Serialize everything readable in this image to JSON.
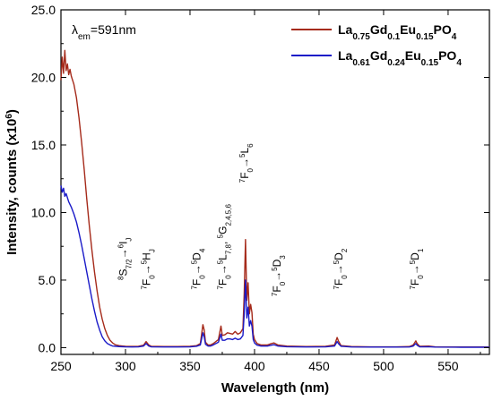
{
  "chart_data": {
    "type": "line",
    "xlabel": "Wavelength (nm)",
    "ylabel_parts": [
      "Intensity, counts (x10",
      "6",
      ")"
    ],
    "xlim": [
      250,
      582
    ],
    "ylim": [
      -0.5,
      25.0
    ],
    "xticks": [
      250,
      300,
      350,
      400,
      450,
      500,
      550
    ],
    "yticks": [
      0.0,
      5.0,
      10.0,
      15.0,
      20.0,
      25.0
    ],
    "ytick_labels": [
      "0.0",
      "5.0",
      "10.0",
      "15.0",
      "20.0",
      "25.0"
    ],
    "grid": false,
    "legend_position": "top-right",
    "excitation_label": {
      "symbol": "λ",
      "sub": "em",
      "text": "=591nm"
    },
    "series": [
      {
        "legend_parts": [
          [
            "La",
            "0.75"
          ],
          [
            "Gd",
            "0.1"
          ],
          [
            "Eu",
            "0.15"
          ],
          [
            "PO",
            "4"
          ]
        ],
        "color": "#a52a1a",
        "points": [
          [
            250,
            19.8
          ],
          [
            251,
            21.5
          ],
          [
            252,
            20.3
          ],
          [
            253,
            22.0
          ],
          [
            254,
            20.5
          ],
          [
            255,
            21.0
          ],
          [
            256,
            20.2
          ],
          [
            257,
            20.6
          ],
          [
            258,
            20.1
          ],
          [
            260,
            19.5
          ],
          [
            262,
            18.5
          ],
          [
            264,
            17.0
          ],
          [
            266,
            15.2
          ],
          [
            268,
            13.2
          ],
          [
            270,
            11.0
          ],
          [
            272,
            9.0
          ],
          [
            274,
            7.2
          ],
          [
            276,
            5.6
          ],
          [
            278,
            4.2
          ],
          [
            280,
            3.0
          ],
          [
            282,
            2.1
          ],
          [
            284,
            1.4
          ],
          [
            286,
            0.9
          ],
          [
            288,
            0.55
          ],
          [
            290,
            0.35
          ],
          [
            292,
            0.22
          ],
          [
            295,
            0.15
          ],
          [
            298,
            0.12
          ],
          [
            300,
            0.1
          ],
          [
            305,
            0.09
          ],
          [
            310,
            0.1
          ],
          [
            314,
            0.18
          ],
          [
            316,
            0.45
          ],
          [
            318,
            0.2
          ],
          [
            320,
            0.1
          ],
          [
            330,
            0.08
          ],
          [
            340,
            0.08
          ],
          [
            350,
            0.1
          ],
          [
            355,
            0.15
          ],
          [
            358,
            0.3
          ],
          [
            360,
            1.7
          ],
          [
            361,
            1.3
          ],
          [
            362,
            0.4
          ],
          [
            364,
            0.2
          ],
          [
            366,
            0.2
          ],
          [
            368,
            0.3
          ],
          [
            370,
            0.45
          ],
          [
            372,
            0.6
          ],
          [
            374,
            1.6
          ],
          [
            375,
            0.9
          ],
          [
            377,
            0.95
          ],
          [
            379,
            1.1
          ],
          [
            381,
            1.05
          ],
          [
            383,
            1.0
          ],
          [
            385,
            1.2
          ],
          [
            387,
            1.0
          ],
          [
            389,
            1.1
          ],
          [
            391,
            1.4
          ],
          [
            392,
            4.0
          ],
          [
            393,
            8.0
          ],
          [
            394,
            3.5
          ],
          [
            395,
            4.8
          ],
          [
            396,
            2.5
          ],
          [
            397,
            3.2
          ],
          [
            398,
            2.6
          ],
          [
            399,
            1.0
          ],
          [
            400,
            0.6
          ],
          [
            402,
            0.3
          ],
          [
            405,
            0.2
          ],
          [
            410,
            0.2
          ],
          [
            413,
            0.3
          ],
          [
            415,
            0.35
          ],
          [
            418,
            0.2
          ],
          [
            425,
            0.12
          ],
          [
            440,
            0.08
          ],
          [
            455,
            0.1
          ],
          [
            462,
            0.2
          ],
          [
            464,
            0.75
          ],
          [
            465,
            0.5
          ],
          [
            467,
            0.15
          ],
          [
            475,
            0.08
          ],
          [
            490,
            0.06
          ],
          [
            510,
            0.06
          ],
          [
            520,
            0.08
          ],
          [
            523,
            0.2
          ],
          [
            525,
            0.5
          ],
          [
            526,
            0.3
          ],
          [
            528,
            0.1
          ],
          [
            535,
            0.12
          ],
          [
            540,
            0.06
          ],
          [
            560,
            0.05
          ],
          [
            582,
            0.05
          ]
        ]
      },
      {
        "legend_parts": [
          [
            "La",
            "0.61"
          ],
          [
            "Gd",
            "0.24"
          ],
          [
            "Eu",
            "0.15"
          ],
          [
            "PO",
            "4"
          ]
        ],
        "color": "#1a1ac8",
        "points": [
          [
            250,
            12.0
          ],
          [
            251,
            11.5
          ],
          [
            252,
            11.8
          ],
          [
            253,
            11.2
          ],
          [
            254,
            11.4
          ],
          [
            256,
            10.8
          ],
          [
            258,
            10.4
          ],
          [
            260,
            9.9
          ],
          [
            262,
            9.3
          ],
          [
            264,
            8.5
          ],
          [
            266,
            7.6
          ],
          [
            268,
            6.6
          ],
          [
            270,
            5.6
          ],
          [
            272,
            4.6
          ],
          [
            274,
            3.6
          ],
          [
            276,
            2.7
          ],
          [
            278,
            1.9
          ],
          [
            280,
            1.3
          ],
          [
            282,
            0.8
          ],
          [
            284,
            0.5
          ],
          [
            286,
            0.3
          ],
          [
            288,
            0.2
          ],
          [
            290,
            0.12
          ],
          [
            295,
            0.08
          ],
          [
            300,
            0.06
          ],
          [
            305,
            0.05
          ],
          [
            310,
            0.06
          ],
          [
            314,
            0.12
          ],
          [
            316,
            0.3
          ],
          [
            318,
            0.12
          ],
          [
            320,
            0.06
          ],
          [
            330,
            0.05
          ],
          [
            340,
            0.05
          ],
          [
            350,
            0.06
          ],
          [
            355,
            0.1
          ],
          [
            358,
            0.2
          ],
          [
            360,
            1.1
          ],
          [
            361,
            0.8
          ],
          [
            362,
            0.25
          ],
          [
            364,
            0.12
          ],
          [
            366,
            0.12
          ],
          [
            368,
            0.2
          ],
          [
            370,
            0.3
          ],
          [
            372,
            0.4
          ],
          [
            374,
            1.0
          ],
          [
            375,
            0.55
          ],
          [
            377,
            0.55
          ],
          [
            379,
            0.65
          ],
          [
            381,
            0.65
          ],
          [
            383,
            0.6
          ],
          [
            385,
            0.7
          ],
          [
            387,
            0.6
          ],
          [
            389,
            0.65
          ],
          [
            391,
            0.9
          ],
          [
            392,
            2.5
          ],
          [
            393,
            5.0
          ],
          [
            394,
            2.2
          ],
          [
            395,
            3.0
          ],
          [
            396,
            1.6
          ],
          [
            397,
            2.0
          ],
          [
            398,
            1.6
          ],
          [
            399,
            0.6
          ],
          [
            400,
            0.35
          ],
          [
            402,
            0.18
          ],
          [
            405,
            0.12
          ],
          [
            410,
            0.12
          ],
          [
            413,
            0.18
          ],
          [
            415,
            0.22
          ],
          [
            418,
            0.12
          ],
          [
            425,
            0.07
          ],
          [
            440,
            0.05
          ],
          [
            455,
            0.06
          ],
          [
            462,
            0.12
          ],
          [
            464,
            0.45
          ],
          [
            465,
            0.3
          ],
          [
            467,
            0.1
          ],
          [
            475,
            0.05
          ],
          [
            490,
            0.04
          ],
          [
            510,
            0.04
          ],
          [
            520,
            0.05
          ],
          [
            523,
            0.12
          ],
          [
            525,
            0.3
          ],
          [
            526,
            0.18
          ],
          [
            528,
            0.06
          ],
          [
            535,
            0.07
          ],
          [
            540,
            0.04
          ],
          [
            560,
            0.03
          ],
          [
            582,
            0.03
          ]
        ]
      }
    ],
    "transitions": [
      {
        "label": [
          [
            "",
            "8"
          ],
          [
            "S",
            ""
          ],
          [
            "_",
            "7/2"
          ],
          [
            "→",
            ""
          ],
          [
            "",
            "6"
          ],
          [
            "I",
            ""
          ],
          [
            "_",
            "J"
          ]
        ],
        "x": 301,
        "y": 5.0
      },
      {
        "label": [
          [
            "",
            "7"
          ],
          [
            "F",
            ""
          ],
          [
            "_",
            "0"
          ],
          [
            "→",
            ""
          ],
          [
            "",
            "5"
          ],
          [
            "H",
            ""
          ],
          [
            "_",
            "J"
          ]
        ],
        "x": 319,
        "y": 4.3
      },
      {
        "label": [
          [
            "",
            "7"
          ],
          [
            "F",
            ""
          ],
          [
            "_",
            "0"
          ],
          [
            "→",
            ""
          ],
          [
            "",
            "5"
          ],
          [
            "D",
            ""
          ],
          [
            "_",
            "4"
          ]
        ],
        "x": 358,
        "y": 4.3
      },
      {
        "label": [
          [
            "",
            "7"
          ],
          [
            "F",
            ""
          ],
          [
            "_",
            "0"
          ],
          [
            "→",
            ""
          ],
          [
            "",
            "5"
          ],
          [
            "L",
            ""
          ],
          [
            "_",
            "7,8"
          ],
          [
            ", ",
            ""
          ],
          [
            "",
            "5"
          ],
          [
            "G",
            ""
          ],
          [
            "_",
            "2,4,5,6"
          ]
        ],
        "x": 378,
        "y": 4.3
      },
      {
        "label": [
          [
            "",
            "7"
          ],
          [
            "F",
            ""
          ],
          [
            "_",
            "0"
          ],
          [
            "→",
            ""
          ],
          [
            "",
            "5"
          ],
          [
            "L",
            ""
          ],
          [
            "_",
            "6"
          ]
        ],
        "x": 395,
        "y": 12.2
      },
      {
        "label": [
          [
            "",
            "7"
          ],
          [
            "F",
            ""
          ],
          [
            "_",
            "0"
          ],
          [
            "→",
            ""
          ],
          [
            "",
            "5"
          ],
          [
            "D",
            ""
          ],
          [
            "_",
            "3"
          ]
        ],
        "x": 420,
        "y": 3.8
      },
      {
        "label": [
          [
            "",
            "7"
          ],
          [
            "F",
            ""
          ],
          [
            "_",
            "0"
          ],
          [
            "→",
            ""
          ],
          [
            "",
            "5"
          ],
          [
            "D",
            ""
          ],
          [
            "_",
            "2"
          ]
        ],
        "x": 468,
        "y": 4.3
      },
      {
        "label": [
          [
            "",
            "7"
          ],
          [
            "F",
            ""
          ],
          [
            "_",
            "0"
          ],
          [
            "→",
            ""
          ],
          [
            "",
            "5"
          ],
          [
            "D",
            ""
          ],
          [
            "_",
            "1"
          ]
        ],
        "x": 527,
        "y": 4.3
      }
    ]
  }
}
